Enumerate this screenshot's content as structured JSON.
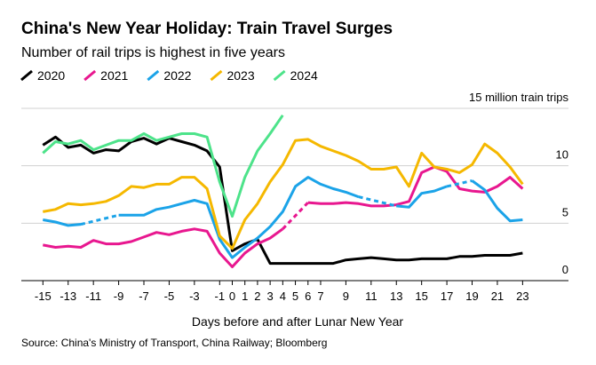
{
  "chart_data": {
    "type": "line",
    "title": "China's New Year Holiday: Train Travel Surges",
    "subtitle": "Number of rail trips is highest in five years",
    "xlabel": "Days before and after Lunar New Year",
    "source": "Source: China's Ministry of Transport, China Railway; Bloomberg",
    "x": [
      -15,
      -14,
      -13,
      -12,
      -11,
      -10,
      -9,
      -8,
      -7,
      -6,
      -5,
      -4,
      -3,
      -2,
      -1,
      0,
      1,
      2,
      3,
      4,
      5,
      6,
      7,
      8,
      9,
      10,
      11,
      12,
      13,
      14,
      15,
      16,
      17,
      18,
      19,
      20,
      21,
      22,
      23
    ],
    "xlim": [
      -16.5,
      26
    ],
    "xticks": [
      -15,
      -13,
      -11,
      -9,
      -7,
      -5,
      -3,
      -1,
      0,
      1,
      2,
      3,
      4,
      5,
      6,
      7,
      9,
      11,
      13,
      15,
      17,
      19,
      21,
      23
    ],
    "ylim": [
      0,
      15
    ],
    "yticks": [
      0,
      5,
      10,
      {
        "value": 15,
        "label": "15 million train trips"
      }
    ],
    "grid": true,
    "legend": "top-left",
    "series": [
      {
        "name": "2020",
        "color": "#000000",
        "values": [
          11.8,
          12.5,
          11.6,
          11.8,
          11.1,
          11.4,
          11.3,
          12.1,
          12.4,
          11.9,
          12.4,
          12.1,
          11.8,
          11.3,
          9.9,
          2.6,
          3.2,
          3.6,
          1.5,
          1.5,
          1.5,
          1.5,
          1.5,
          1.5,
          1.8,
          1.9,
          2.0,
          1.9,
          1.8,
          1.8,
          1.9,
          1.9,
          1.9,
          2.1,
          2.1,
          2.2,
          2.2,
          2.2,
          2.4
        ]
      },
      {
        "name": "2021",
        "color": "#e8178f",
        "values": [
          3.1,
          2.9,
          3.0,
          2.9,
          3.5,
          3.2,
          3.2,
          3.4,
          3.8,
          4.2,
          4.0,
          4.3,
          4.5,
          4.3,
          2.4,
          1.2,
          2.4,
          3.2,
          3.7,
          4.5,
          null,
          6.8,
          6.7,
          6.7,
          6.8,
          6.7,
          6.5,
          6.5,
          6.6,
          6.9,
          9.4,
          9.9,
          9.5,
          8.0,
          7.8,
          7.7,
          8.2,
          9.0,
          8.0
        ]
      },
      {
        "name": "2022",
        "color": "#1ba3e8",
        "values": [
          5.3,
          5.1,
          4.8,
          4.9,
          null,
          null,
          5.7,
          5.7,
          5.7,
          6.2,
          6.4,
          6.7,
          7.0,
          6.7,
          3.6,
          2.0,
          2.9,
          3.7,
          4.7,
          6.0,
          8.2,
          9.0,
          8.4,
          8.0,
          7.7,
          7.3,
          null,
          null,
          6.5,
          6.4,
          7.6,
          7.8,
          8.2,
          null,
          8.7,
          7.9,
          6.3,
          5.2,
          5.3
        ]
      },
      {
        "name": "2023",
        "color": "#f5b800",
        "values": [
          6.0,
          6.2,
          6.7,
          6.6,
          6.7,
          6.9,
          7.4,
          8.2,
          8.1,
          8.4,
          8.4,
          9.0,
          9.0,
          8.0,
          3.9,
          2.8,
          5.3,
          6.7,
          8.6,
          10.1,
          12.2,
          12.3,
          11.7,
          11.3,
          10.9,
          10.4,
          9.7,
          9.7,
          9.9,
          8.2,
          11.1,
          9.9,
          9.7,
          9.4,
          10.1,
          11.9,
          11.1,
          9.9,
          8.4
        ]
      },
      {
        "name": "2024",
        "color": "#4de38a",
        "values": [
          11.1,
          12.1,
          11.9,
          12.2,
          11.4,
          11.8,
          12.2,
          12.2,
          12.8,
          12.2,
          12.5,
          12.8,
          12.8,
          12.5,
          8.6,
          5.6,
          9.0,
          11.3,
          12.8,
          14.4,
          null,
          null,
          null,
          null,
          null,
          null,
          null,
          null,
          null,
          null,
          null,
          null,
          null,
          null,
          null,
          null,
          null,
          null,
          null
        ]
      }
    ]
  }
}
